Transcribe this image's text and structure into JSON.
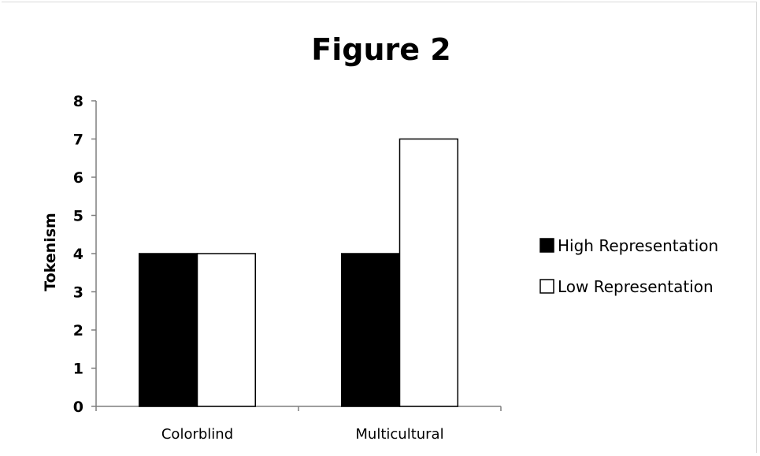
{
  "chart_data": {
    "type": "bar",
    "title": "Figure 2",
    "xlabel": "",
    "ylabel": "Tokenism",
    "categories": [
      "Colorblind",
      "Multicultural"
    ],
    "series": [
      {
        "name": "High Representation",
        "values": [
          4,
          4
        ],
        "color": "#000000"
      },
      {
        "name": "Low Representation",
        "values": [
          4,
          7
        ],
        "color": "#ffffff"
      }
    ],
    "ylim": [
      0,
      8
    ],
    "yticks": [
      0,
      1,
      2,
      3,
      4,
      5,
      6,
      7,
      8
    ],
    "grid": false,
    "legend_position": "right"
  }
}
